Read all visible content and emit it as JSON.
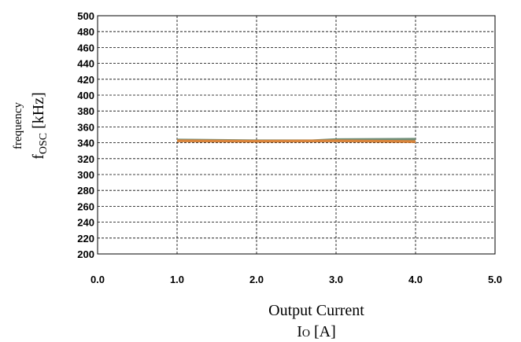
{
  "chart_data": {
    "type": "line",
    "xlabel_line1": "Output Current",
    "xlabel_line2_main": "I",
    "xlabel_line2_sub": "O",
    "xlabel_line2_unit": " [A]",
    "ylabel_line1": "frequency",
    "ylabel_line2_main": "f",
    "ylabel_line2_sub": "OSC",
    "ylabel_line2_unit": " [kHz]",
    "xlim": [
      0,
      5
    ],
    "ylim": [
      200,
      500
    ],
    "x_ticks": [
      0,
      1,
      2,
      3,
      4,
      5
    ],
    "x_tick_labels": [
      "0.0",
      "1.0",
      "2.0",
      "3.0",
      "4.0",
      "5.0"
    ],
    "y_ticks": [
      200,
      220,
      240,
      260,
      280,
      300,
      320,
      340,
      360,
      380,
      400,
      420,
      440,
      460,
      480,
      500
    ],
    "y_tick_labels": [
      "200",
      "220",
      "240",
      "260",
      "280",
      "300",
      "320",
      "340",
      "360",
      "380",
      "400",
      "420",
      "440",
      "460",
      "480",
      "500"
    ],
    "grid": true,
    "series": [
      {
        "color": "#6e8e78",
        "x": [
          1.0,
          2.0,
          2.7,
          3.0,
          4.0
        ],
        "y": [
          343.5,
          342.5,
          342.5,
          344,
          344.5
        ]
      },
      {
        "color": "#d9843b",
        "x": [
          1.0,
          2.0,
          3.0,
          4.0
        ],
        "y": [
          342.5,
          342,
          342.5,
          341.5
        ]
      }
    ]
  }
}
